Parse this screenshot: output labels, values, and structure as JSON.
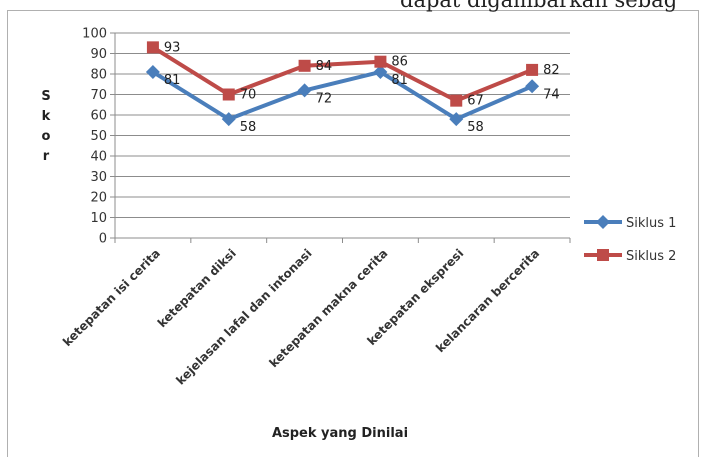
{
  "page_header": "dapat digambarkan sebag",
  "chart_data": {
    "type": "line",
    "categories": [
      "ketepatan isi cerita",
      "ketepatan diksi",
      "kejelasan lafal dan intonasi",
      "ketepatan makna cerita",
      "ketepatan ekspresi",
      "kelancaran bercerita"
    ],
    "series": [
      {
        "name": "Siklus 1",
        "values": [
          81,
          58,
          72,
          81,
          58,
          74
        ],
        "color": "#4a7ebb",
        "marker": "diamond"
      },
      {
        "name": "Siklus 2",
        "values": [
          93,
          70,
          84,
          86,
          67,
          82
        ],
        "color": "#be4b48",
        "marker": "square"
      }
    ],
    "ylabel": "S k o r",
    "xlabel": "Aspek yang Dinilai",
    "ylim": [
      0,
      100
    ],
    "yticks": [
      0,
      10,
      20,
      30,
      40,
      50,
      60,
      70,
      80,
      90,
      100
    ],
    "grid": true,
    "legend_position": "right",
    "data_labels": true
  }
}
